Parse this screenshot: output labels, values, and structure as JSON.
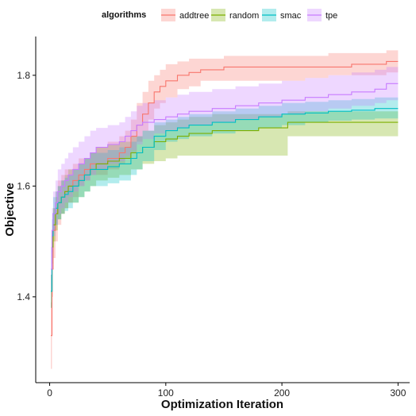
{
  "chart_data": {
    "type": "line",
    "xlabel": "Optimization Iteration",
    "ylabel": "Objective",
    "xlim": [
      -12,
      310
    ],
    "ylim": [
      1.245,
      1.87
    ],
    "x_ticks": [
      0,
      100,
      200,
      300
    ],
    "y_ticks": [
      1.4,
      1.6,
      1.8
    ],
    "grid": false,
    "legend": {
      "title": "algorithms",
      "position": "top"
    },
    "series": [
      {
        "name": "addtree",
        "color": "#F8766D",
        "x": [
          1,
          2,
          3,
          5,
          7,
          10,
          13,
          16,
          20,
          25,
          30,
          35,
          40,
          50,
          60,
          65,
          70,
          75,
          80,
          85,
          90,
          95,
          100,
          110,
          120,
          130,
          140,
          150,
          160,
          180,
          200,
          220,
          240,
          260,
          280,
          290,
          300
        ],
        "y": [
          1.33,
          1.45,
          1.52,
          1.55,
          1.57,
          1.58,
          1.59,
          1.6,
          1.61,
          1.62,
          1.63,
          1.64,
          1.64,
          1.65,
          1.66,
          1.67,
          1.69,
          1.71,
          1.73,
          1.75,
          1.77,
          1.78,
          1.79,
          1.8,
          1.805,
          1.81,
          1.81,
          1.815,
          1.815,
          1.815,
          1.815,
          1.815,
          1.815,
          1.82,
          1.82,
          1.825,
          1.825
        ],
        "low": [
          1.27,
          1.4,
          1.47,
          1.5,
          1.53,
          1.55,
          1.56,
          1.57,
          1.58,
          1.6,
          1.61,
          1.62,
          1.62,
          1.63,
          1.64,
          1.65,
          1.66,
          1.68,
          1.7,
          1.72,
          1.74,
          1.75,
          1.76,
          1.775,
          1.78,
          1.79,
          1.79,
          1.79,
          1.79,
          1.79,
          1.79,
          1.795,
          1.8,
          1.8,
          1.8,
          1.805,
          1.805
        ],
        "high": [
          1.39,
          1.5,
          1.56,
          1.59,
          1.61,
          1.62,
          1.63,
          1.63,
          1.64,
          1.65,
          1.65,
          1.66,
          1.67,
          1.68,
          1.69,
          1.7,
          1.72,
          1.75,
          1.77,
          1.79,
          1.8,
          1.81,
          1.82,
          1.825,
          1.83,
          1.83,
          1.83,
          1.835,
          1.835,
          1.835,
          1.835,
          1.835,
          1.84,
          1.84,
          1.84,
          1.845,
          1.845
        ]
      },
      {
        "name": "random",
        "color": "#7CAE00",
        "x": [
          1,
          2,
          3,
          5,
          7,
          10,
          13,
          16,
          20,
          25,
          30,
          35,
          40,
          50,
          60,
          70,
          80,
          90,
          100,
          110,
          120,
          140,
          160,
          180,
          200,
          205,
          220,
          240,
          260,
          280,
          300
        ],
        "y": [
          1.41,
          1.49,
          1.53,
          1.55,
          1.57,
          1.58,
          1.59,
          1.6,
          1.6,
          1.61,
          1.62,
          1.63,
          1.64,
          1.645,
          1.65,
          1.66,
          1.67,
          1.68,
          1.685,
          1.69,
          1.695,
          1.7,
          1.7,
          1.705,
          1.705,
          1.715,
          1.715,
          1.715,
          1.715,
          1.715,
          1.715
        ],
        "low": [
          1.38,
          1.46,
          1.5,
          1.52,
          1.54,
          1.55,
          1.56,
          1.57,
          1.57,
          1.58,
          1.59,
          1.6,
          1.61,
          1.615,
          1.62,
          1.63,
          1.64,
          1.645,
          1.65,
          1.655,
          1.655,
          1.655,
          1.655,
          1.655,
          1.655,
          1.69,
          1.69,
          1.69,
          1.69,
          1.69,
          1.69
        ],
        "high": [
          1.44,
          1.52,
          1.56,
          1.58,
          1.6,
          1.61,
          1.62,
          1.63,
          1.63,
          1.64,
          1.65,
          1.66,
          1.67,
          1.675,
          1.68,
          1.69,
          1.7,
          1.71,
          1.715,
          1.72,
          1.725,
          1.73,
          1.73,
          1.73,
          1.73,
          1.735,
          1.735,
          1.735,
          1.735,
          1.735,
          1.735
        ]
      },
      {
        "name": "smac",
        "color": "#00BFC4",
        "x": [
          1,
          2,
          3,
          5,
          7,
          10,
          13,
          16,
          20,
          25,
          30,
          35,
          40,
          50,
          60,
          70,
          75,
          80,
          90,
          100,
          110,
          120,
          140,
          160,
          180,
          200,
          220,
          240,
          260,
          280,
          300
        ],
        "y": [
          1.41,
          1.51,
          1.55,
          1.56,
          1.57,
          1.58,
          1.585,
          1.59,
          1.6,
          1.61,
          1.62,
          1.63,
          1.63,
          1.635,
          1.64,
          1.65,
          1.66,
          1.67,
          1.69,
          1.7,
          1.705,
          1.71,
          1.715,
          1.72,
          1.725,
          1.73,
          1.732,
          1.735,
          1.737,
          1.74,
          1.74
        ],
        "low": [
          1.38,
          1.48,
          1.52,
          1.53,
          1.54,
          1.55,
          1.555,
          1.56,
          1.57,
          1.58,
          1.59,
          1.6,
          1.6,
          1.605,
          1.61,
          1.62,
          1.63,
          1.645,
          1.665,
          1.68,
          1.685,
          1.69,
          1.695,
          1.7,
          1.705,
          1.71,
          1.715,
          1.718,
          1.72,
          1.722,
          1.725
        ],
        "high": [
          1.44,
          1.54,
          1.58,
          1.59,
          1.6,
          1.61,
          1.615,
          1.62,
          1.63,
          1.64,
          1.65,
          1.66,
          1.66,
          1.665,
          1.67,
          1.68,
          1.69,
          1.7,
          1.715,
          1.72,
          1.725,
          1.73,
          1.735,
          1.74,
          1.745,
          1.75,
          1.752,
          1.755,
          1.757,
          1.76,
          1.76
        ]
      },
      {
        "name": "tpe",
        "color": "#C77CFF",
        "x": [
          1,
          2,
          3,
          5,
          7,
          10,
          13,
          16,
          20,
          25,
          30,
          35,
          40,
          50,
          60,
          65,
          70,
          75,
          80,
          90,
          100,
          110,
          120,
          140,
          160,
          180,
          200,
          220,
          240,
          260,
          280,
          290,
          300
        ],
        "y": [
          1.45,
          1.52,
          1.55,
          1.57,
          1.59,
          1.6,
          1.61,
          1.62,
          1.63,
          1.64,
          1.65,
          1.66,
          1.67,
          1.675,
          1.68,
          1.69,
          1.7,
          1.71,
          1.715,
          1.72,
          1.725,
          1.73,
          1.735,
          1.74,
          1.745,
          1.75,
          1.755,
          1.76,
          1.765,
          1.77,
          1.775,
          1.785,
          1.785
        ],
        "low": [
          1.41,
          1.48,
          1.51,
          1.53,
          1.55,
          1.56,
          1.57,
          1.58,
          1.59,
          1.6,
          1.61,
          1.62,
          1.63,
          1.64,
          1.645,
          1.655,
          1.665,
          1.675,
          1.685,
          1.695,
          1.7,
          1.705,
          1.71,
          1.715,
          1.72,
          1.725,
          1.73,
          1.735,
          1.74,
          1.745,
          1.75,
          1.755,
          1.755
        ],
        "high": [
          1.49,
          1.56,
          1.59,
          1.61,
          1.63,
          1.64,
          1.65,
          1.66,
          1.67,
          1.68,
          1.69,
          1.7,
          1.705,
          1.71,
          1.715,
          1.725,
          1.735,
          1.745,
          1.75,
          1.755,
          1.76,
          1.765,
          1.77,
          1.775,
          1.78,
          1.785,
          1.79,
          1.795,
          1.8,
          1.805,
          1.81,
          1.815,
          1.815
        ]
      }
    ]
  }
}
